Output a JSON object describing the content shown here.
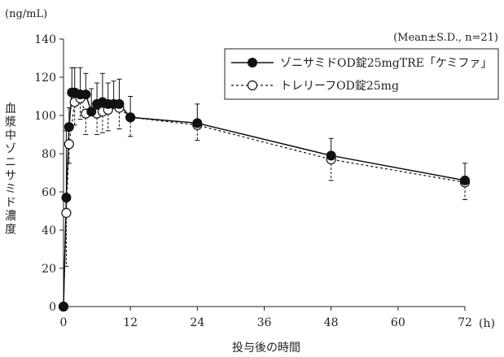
{
  "chart_data": {
    "type": "line",
    "unit_label": "(ng/mL)",
    "x_unit_label": "(h)",
    "xlabel": "投与後の時間",
    "ylabel": "血漿中ゾニサミド濃度",
    "stats_note": "(Mean±S.D., n=21)",
    "xlim": [
      0,
      72
    ],
    "ylim": [
      0,
      140
    ],
    "xticks": [
      0,
      12,
      24,
      36,
      48,
      60,
      72
    ],
    "yticks": [
      0,
      20,
      40,
      60,
      80,
      100,
      120,
      140
    ],
    "grid": false,
    "legend_position": "top-right",
    "series": [
      {
        "name": "ゾニサミドOD錠25mgTRE「ケミファ」",
        "marker": "filled-circle",
        "line": "solid",
        "color": "#111111",
        "points": [
          {
            "x": 0,
            "y": 0,
            "sd": 0
          },
          {
            "x": 0.5,
            "y": 57,
            "sd": 35
          },
          {
            "x": 1,
            "y": 94,
            "sd": 10
          },
          {
            "x": 1.5,
            "y": 112,
            "sd": 13
          },
          {
            "x": 2,
            "y": 112,
            "sd": 13
          },
          {
            "x": 3,
            "y": 111,
            "sd": 14
          },
          {
            "x": 4,
            "y": 111,
            "sd": 11
          },
          {
            "x": 5,
            "y": 102,
            "sd": 12
          },
          {
            "x": 6,
            "y": 106,
            "sd": 11
          },
          {
            "x": 7,
            "y": 107,
            "sd": 15
          },
          {
            "x": 8,
            "y": 106,
            "sd": 11
          },
          {
            "x": 9,
            "y": 106,
            "sd": 12
          },
          {
            "x": 10,
            "y": 106,
            "sd": 13
          },
          {
            "x": 12,
            "y": 99,
            "sd": 11
          },
          {
            "x": 24,
            "y": 96,
            "sd": 10
          },
          {
            "x": 48,
            "y": 79,
            "sd": 9
          },
          {
            "x": 72,
            "y": 66,
            "sd": 9
          }
        ]
      },
      {
        "name": "トレリーフOD錠25mg",
        "marker": "open-circle",
        "line": "dashed",
        "color": "#111111",
        "points": [
          {
            "x": 0,
            "y": 0,
            "sd": 0
          },
          {
            "x": 0.5,
            "y": 49,
            "sd": 28
          },
          {
            "x": 1,
            "y": 85,
            "sd": 10
          },
          {
            "x": 2,
            "y": 107,
            "sd": 12
          },
          {
            "x": 3,
            "y": 109,
            "sd": 11
          },
          {
            "x": 4,
            "y": 101,
            "sd": 11
          },
          {
            "x": 6,
            "y": 101,
            "sd": 11
          },
          {
            "x": 7,
            "y": 102,
            "sd": 11
          },
          {
            "x": 8,
            "y": 103,
            "sd": 11
          },
          {
            "x": 10,
            "y": 104,
            "sd": 11
          },
          {
            "x": 12,
            "y": 99,
            "sd": 10
          },
          {
            "x": 24,
            "y": 95,
            "sd": 8
          },
          {
            "x": 48,
            "y": 77,
            "sd": 11
          },
          {
            "x": 72,
            "y": 65,
            "sd": 9
          }
        ]
      }
    ]
  }
}
